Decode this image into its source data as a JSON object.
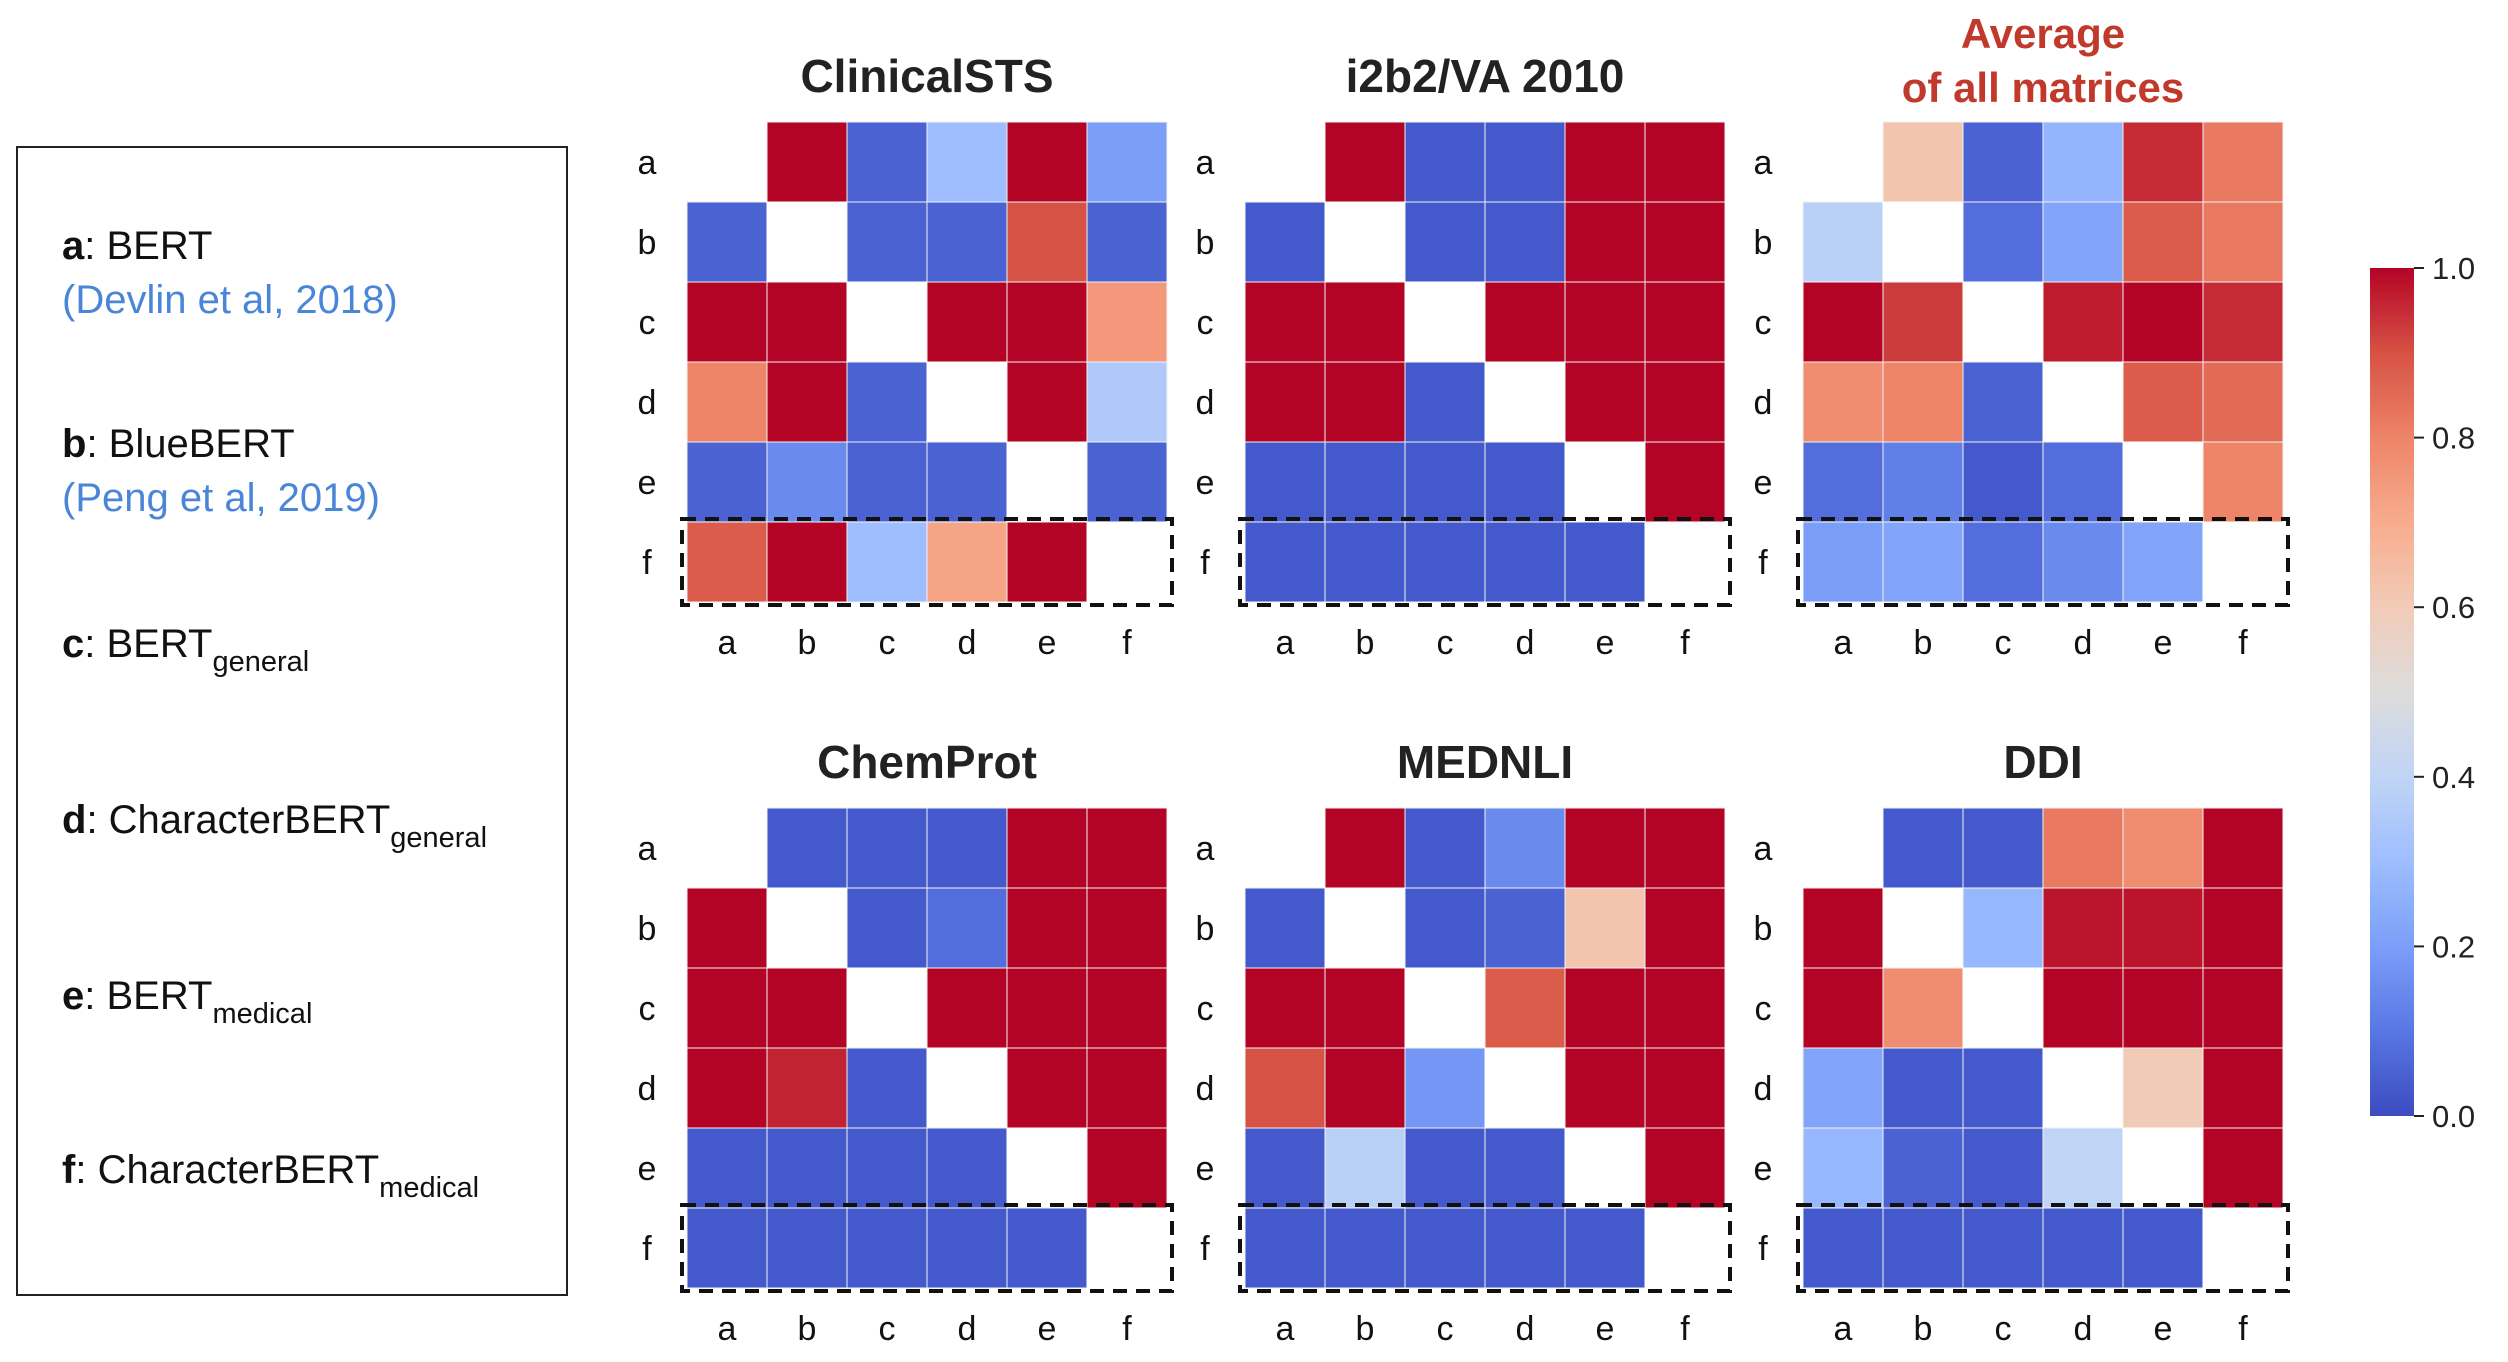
{
  "legend": {
    "items": [
      {
        "key": "a",
        "sep": ": ",
        "name": "BERT",
        "sub": "",
        "cite": "(Devlin et al, 2018)"
      },
      {
        "key": "b",
        "sep": ": ",
        "name": "BlueBERT",
        "sub": "",
        "cite": "(Peng et al, 2019)"
      },
      {
        "key": "c",
        "sep": ": ",
        "name": "BERT",
        "sub": "general",
        "cite": ""
      },
      {
        "key": "d",
        "sep": ": ",
        "name": "CharacterBERT",
        "sub": "general",
        "cite": ""
      },
      {
        "key": "e",
        "sep": ": ",
        "name": "BERT",
        "sub": "medical",
        "cite": ""
      },
      {
        "key": "f",
        "sep": ": ",
        "name": "CharacterBERT",
        "sub": "medical",
        "cite": ""
      }
    ]
  },
  "colors": {
    "low": "#3b4cc0",
    "mid": "#dddddd",
    "high": "#b40426",
    "title": "#222222",
    "title_highlight": "#c0392b"
  },
  "chart_data": [
    {
      "type": "heatmap",
      "title": "ClinicalSTS",
      "title_line2": "",
      "highlight": false,
      "rows": [
        "a",
        "b",
        "c",
        "d",
        "e",
        "f"
      ],
      "cols": [
        "a",
        "b",
        "c",
        "d",
        "e",
        "f"
      ],
      "values": [
        [
          null,
          1.0,
          0.05,
          0.3,
          1.0,
          0.2
        ],
        [
          0.05,
          null,
          0.05,
          0.05,
          0.9,
          0.05
        ],
        [
          1.0,
          1.0,
          null,
          1.0,
          1.0,
          0.75
        ],
        [
          0.8,
          1.0,
          0.05,
          null,
          1.0,
          0.35
        ],
        [
          0.05,
          0.15,
          0.05,
          0.05,
          null,
          0.05
        ],
        [
          0.88,
          1.0,
          0.3,
          0.72,
          1.0,
          null
        ]
      ],
      "highlighted_row": "f"
    },
    {
      "type": "heatmap",
      "title": "i2b2/VA 2010",
      "title_line2": "",
      "highlight": false,
      "rows": [
        "a",
        "b",
        "c",
        "d",
        "e",
        "f"
      ],
      "cols": [
        "a",
        "b",
        "c",
        "d",
        "e",
        "f"
      ],
      "values": [
        [
          null,
          1.0,
          0.03,
          0.03,
          1.0,
          1.0
        ],
        [
          0.03,
          null,
          0.03,
          0.03,
          1.0,
          1.0
        ],
        [
          1.0,
          1.0,
          null,
          1.0,
          1.0,
          1.0
        ],
        [
          1.0,
          1.0,
          0.03,
          null,
          1.0,
          1.0
        ],
        [
          0.03,
          0.03,
          0.03,
          0.03,
          null,
          1.0
        ],
        [
          0.03,
          0.03,
          0.03,
          0.03,
          0.03,
          null
        ]
      ],
      "highlighted_row": "f"
    },
    {
      "type": "heatmap",
      "title": "Average",
      "title_line2": "of all matrices",
      "highlight": true,
      "rows": [
        "a",
        "b",
        "c",
        "d",
        "e",
        "f"
      ],
      "cols": [
        "a",
        "b",
        "c",
        "d",
        "e",
        "f"
      ],
      "values": [
        [
          null,
          0.62,
          0.05,
          0.27,
          0.95,
          0.82
        ],
        [
          0.38,
          null,
          0.08,
          0.22,
          0.88,
          0.82
        ],
        [
          1.0,
          0.93,
          null,
          0.97,
          1.0,
          0.95
        ],
        [
          0.78,
          0.8,
          0.05,
          null,
          0.88,
          0.85
        ],
        [
          0.08,
          0.12,
          0.03,
          0.08,
          null,
          0.8
        ],
        [
          0.2,
          0.22,
          0.08,
          0.15,
          0.22,
          null
        ]
      ],
      "highlighted_row": "f"
    },
    {
      "type": "heatmap",
      "title": "ChemProt",
      "title_line2": "",
      "highlight": false,
      "rows": [
        "a",
        "b",
        "c",
        "d",
        "e",
        "f"
      ],
      "cols": [
        "a",
        "b",
        "c",
        "d",
        "e",
        "f"
      ],
      "values": [
        [
          null,
          0.03,
          0.03,
          0.03,
          1.0,
          1.0
        ],
        [
          1.0,
          null,
          0.03,
          0.08,
          1.0,
          1.0
        ],
        [
          1.0,
          1.0,
          null,
          1.0,
          1.0,
          1.0
        ],
        [
          1.0,
          0.96,
          0.03,
          null,
          1.0,
          1.0
        ],
        [
          0.03,
          0.03,
          0.03,
          0.03,
          null,
          1.0
        ],
        [
          0.03,
          0.03,
          0.03,
          0.03,
          0.03,
          null
        ]
      ],
      "highlighted_row": "f"
    },
    {
      "type": "heatmap",
      "title": "MEDNLI",
      "title_line2": "",
      "highlight": false,
      "rows": [
        "a",
        "b",
        "c",
        "d",
        "e",
        "f"
      ],
      "cols": [
        "a",
        "b",
        "c",
        "d",
        "e",
        "f"
      ],
      "values": [
        [
          null,
          1.0,
          0.03,
          0.15,
          1.0,
          1.0
        ],
        [
          0.03,
          null,
          0.03,
          0.05,
          0.62,
          1.0
        ],
        [
          1.0,
          1.0,
          null,
          0.88,
          1.0,
          1.0
        ],
        [
          0.9,
          1.0,
          0.18,
          null,
          1.0,
          1.0
        ],
        [
          0.03,
          0.38,
          0.03,
          0.03,
          null,
          1.0
        ],
        [
          0.03,
          0.03,
          0.03,
          0.03,
          0.03,
          null
        ]
      ],
      "highlighted_row": "f"
    },
    {
      "type": "heatmap",
      "title": "DDI",
      "title_line2": "",
      "highlight": false,
      "rows": [
        "a",
        "b",
        "c",
        "d",
        "e",
        "f"
      ],
      "cols": [
        "a",
        "b",
        "c",
        "d",
        "e",
        "f"
      ],
      "values": [
        [
          null,
          0.03,
          0.03,
          0.82,
          0.78,
          1.0
        ],
        [
          1.0,
          null,
          0.28,
          0.98,
          0.98,
          1.0
        ],
        [
          1.0,
          0.78,
          null,
          1.0,
          1.0,
          1.0
        ],
        [
          0.22,
          0.03,
          0.03,
          null,
          0.6,
          1.0
        ],
        [
          0.28,
          0.05,
          0.03,
          0.4,
          null,
          1.0
        ],
        [
          0.03,
          0.03,
          0.03,
          0.03,
          0.03,
          null
        ]
      ],
      "highlighted_row": "f"
    }
  ],
  "colorbar": {
    "min": 0.0,
    "max": 1.0,
    "ticks": [
      "0.0",
      "0.2",
      "0.4",
      "0.6",
      "0.8",
      "1.0"
    ]
  }
}
